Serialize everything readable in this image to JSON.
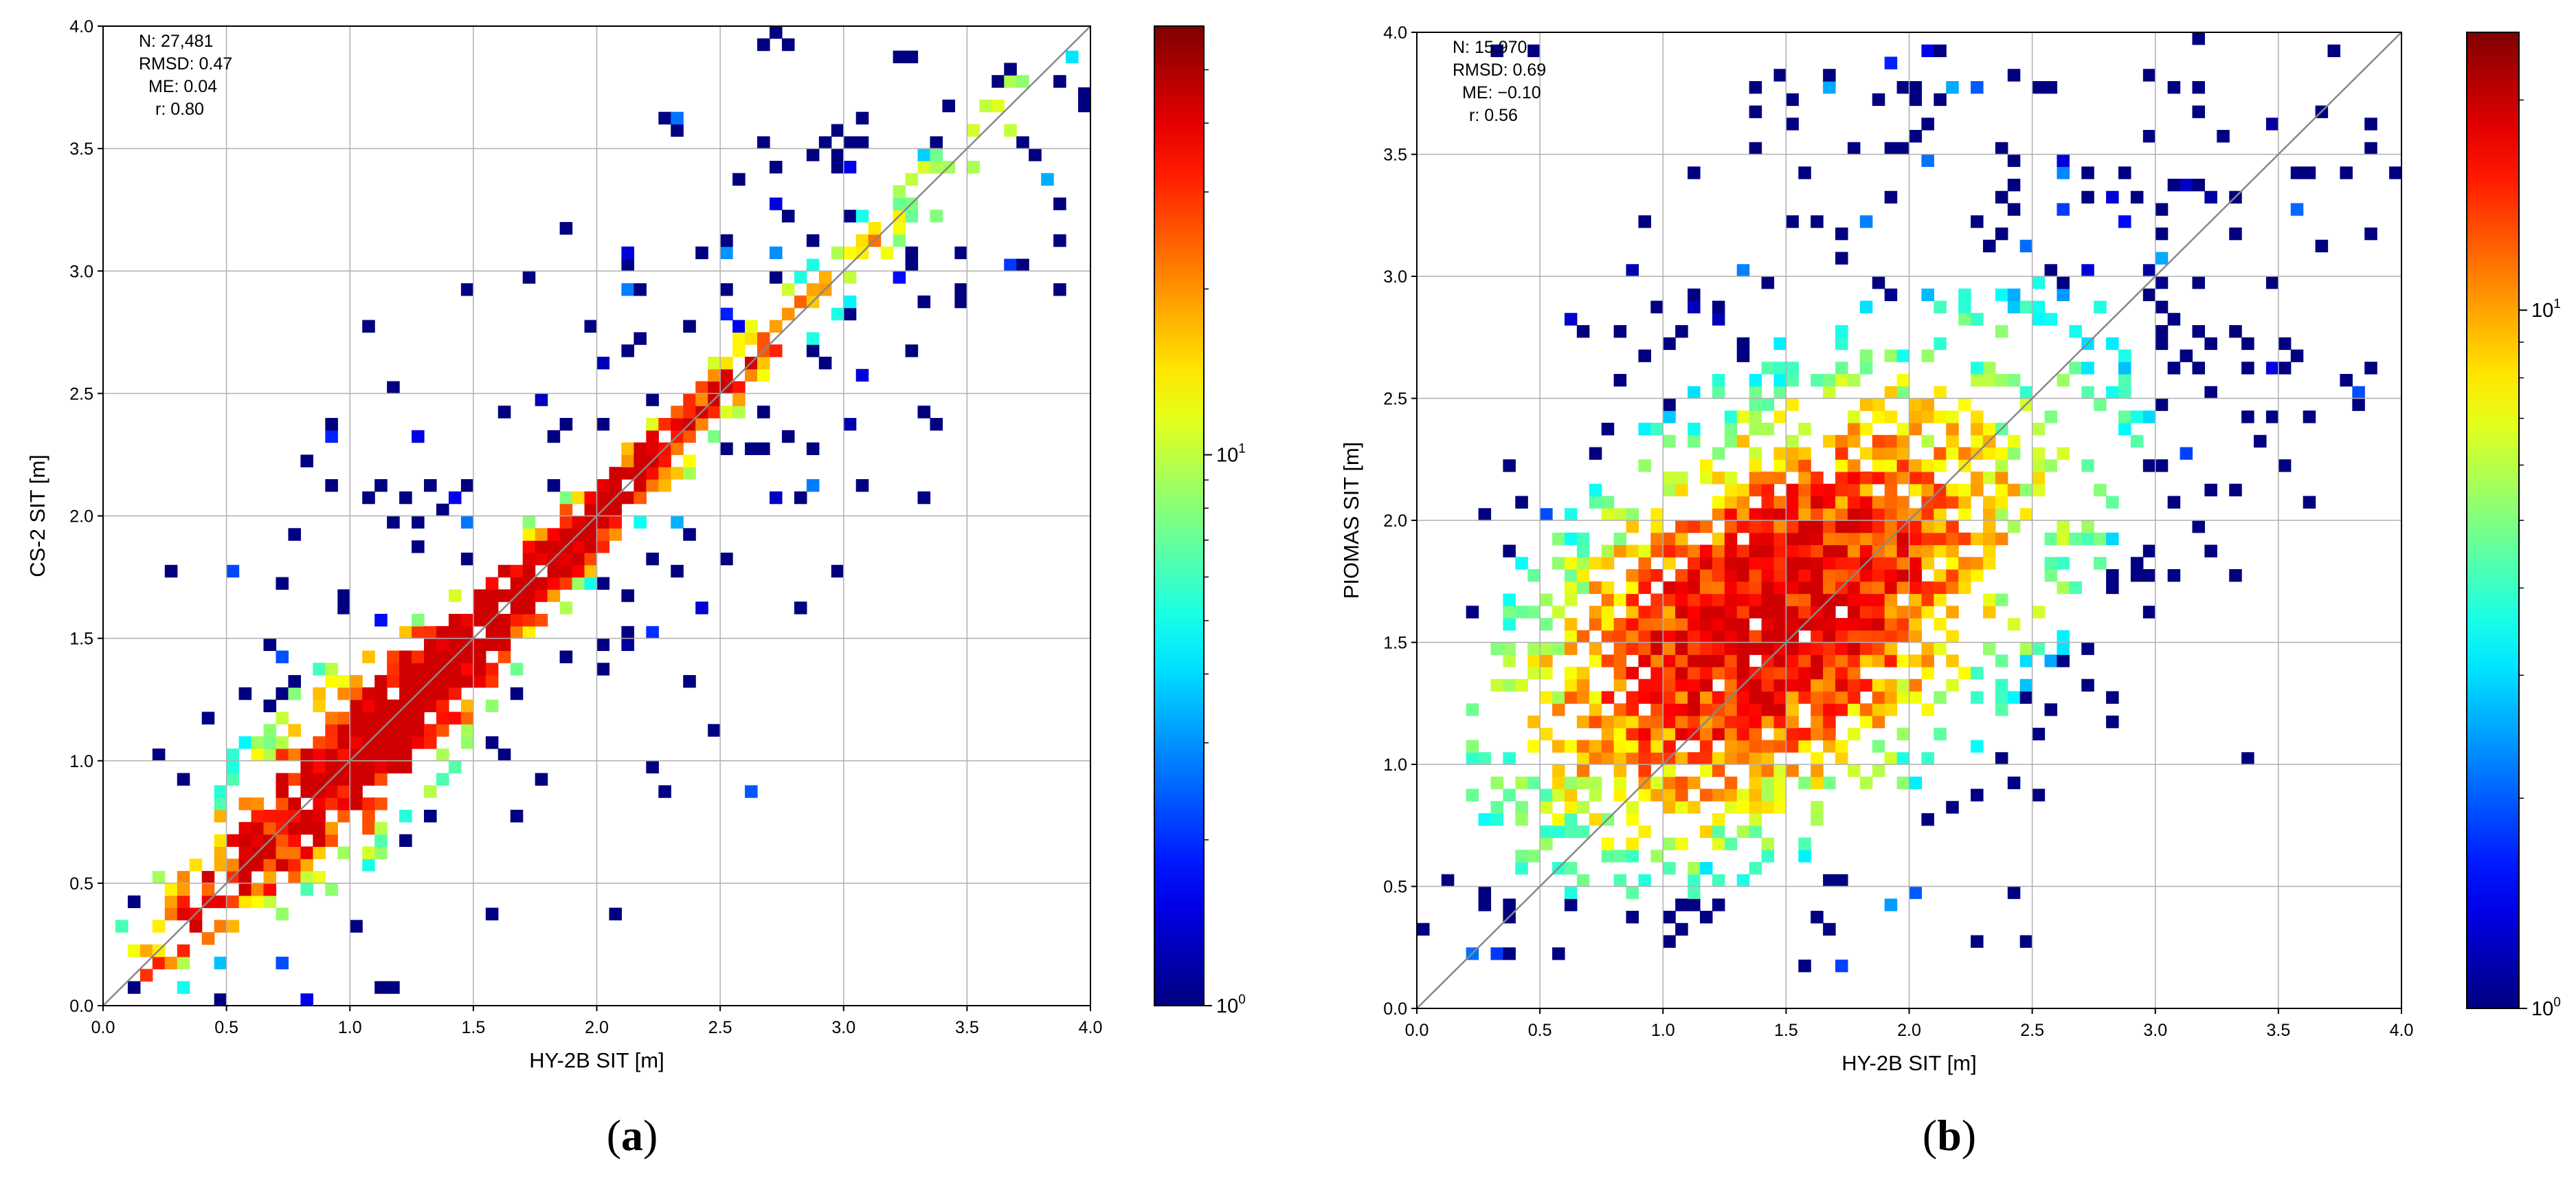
{
  "panels": [
    {
      "label_open": "(",
      "label_letter": "a",
      "label_close": ")",
      "stats": [
        "N: 27,481",
        "RMSD: 0.47",
        "ME: 0.04",
        "r: 0.80"
      ],
      "xlabel": "HY-2B SIT [m]",
      "ylabel": "CS-2 SIT [m]",
      "colorbar": {
        "scale": "log",
        "min_label_base": "10",
        "min_label_exp": "0",
        "mid_label_base": "10",
        "mid_label_exp": "1"
      }
    },
    {
      "label_open": "(",
      "label_letter": "b",
      "label_close": ")",
      "stats": [
        "N: 15,970",
        "RMSD: 0.69",
        "ME: −0.10",
        "r: 0.56"
      ],
      "xlabel": "HY-2B SIT [m]",
      "ylabel": "PIOMAS SIT [m]",
      "colorbar": {
        "scale": "log",
        "min_label_base": "10",
        "min_label_exp": "0",
        "mid_label_base": "10",
        "mid_label_exp": "1"
      }
    }
  ],
  "chart_data": [
    {
      "type": "heatmap",
      "description_type": "2D histogram (log color scale)",
      "x_field": "HY-2B SIT",
      "y_field": "CS-2 SIT",
      "xlim": [
        0,
        4
      ],
      "ylim": [
        0,
        4
      ],
      "xticks": [
        "0.0",
        "0.5",
        "1.0",
        "1.5",
        "2.0",
        "2.5",
        "3.0",
        "3.5",
        "4.0"
      ],
      "yticks": [
        "0.0",
        "0.5",
        "1.0",
        "1.5",
        "2.0",
        "2.5",
        "3.0",
        "3.5",
        "4.0"
      ],
      "grid": true,
      "one_to_one_line": true,
      "color_range": [
        1,
        60
      ],
      "colormap": "jet",
      "count": 27481,
      "rmsd": 0.47,
      "me": 0.04,
      "r": 0.8,
      "density_ridge": [
        [
          0.3,
          0.3
        ],
        [
          1.0,
          1.05
        ],
        [
          1.5,
          1.55
        ],
        [
          2.0,
          2.0
        ],
        [
          2.5,
          2.5
        ],
        [
          3.0,
          3.0
        ],
        [
          3.5,
          3.4
        ],
        [
          4.0,
          3.6
        ]
      ]
    },
    {
      "type": "heatmap",
      "description_type": "2D histogram (log color scale)",
      "x_field": "HY-2B SIT",
      "y_field": "PIOMAS SIT",
      "xlim": [
        0,
        4
      ],
      "ylim": [
        0,
        4
      ],
      "xticks": [
        "0.0",
        "0.5",
        "1.0",
        "1.5",
        "2.0",
        "2.5",
        "3.0",
        "3.5",
        "4.0"
      ],
      "yticks": [
        "0.0",
        "0.5",
        "1.0",
        "1.5",
        "2.0",
        "2.5",
        "3.0",
        "3.5",
        "4.0"
      ],
      "grid": true,
      "one_to_one_line": true,
      "color_range": [
        1,
        25
      ],
      "colormap": "jet",
      "count": 15970,
      "rmsd": 0.69,
      "me": -0.1,
      "r": 0.56,
      "density_center": [
        1.4,
        1.6
      ]
    }
  ]
}
